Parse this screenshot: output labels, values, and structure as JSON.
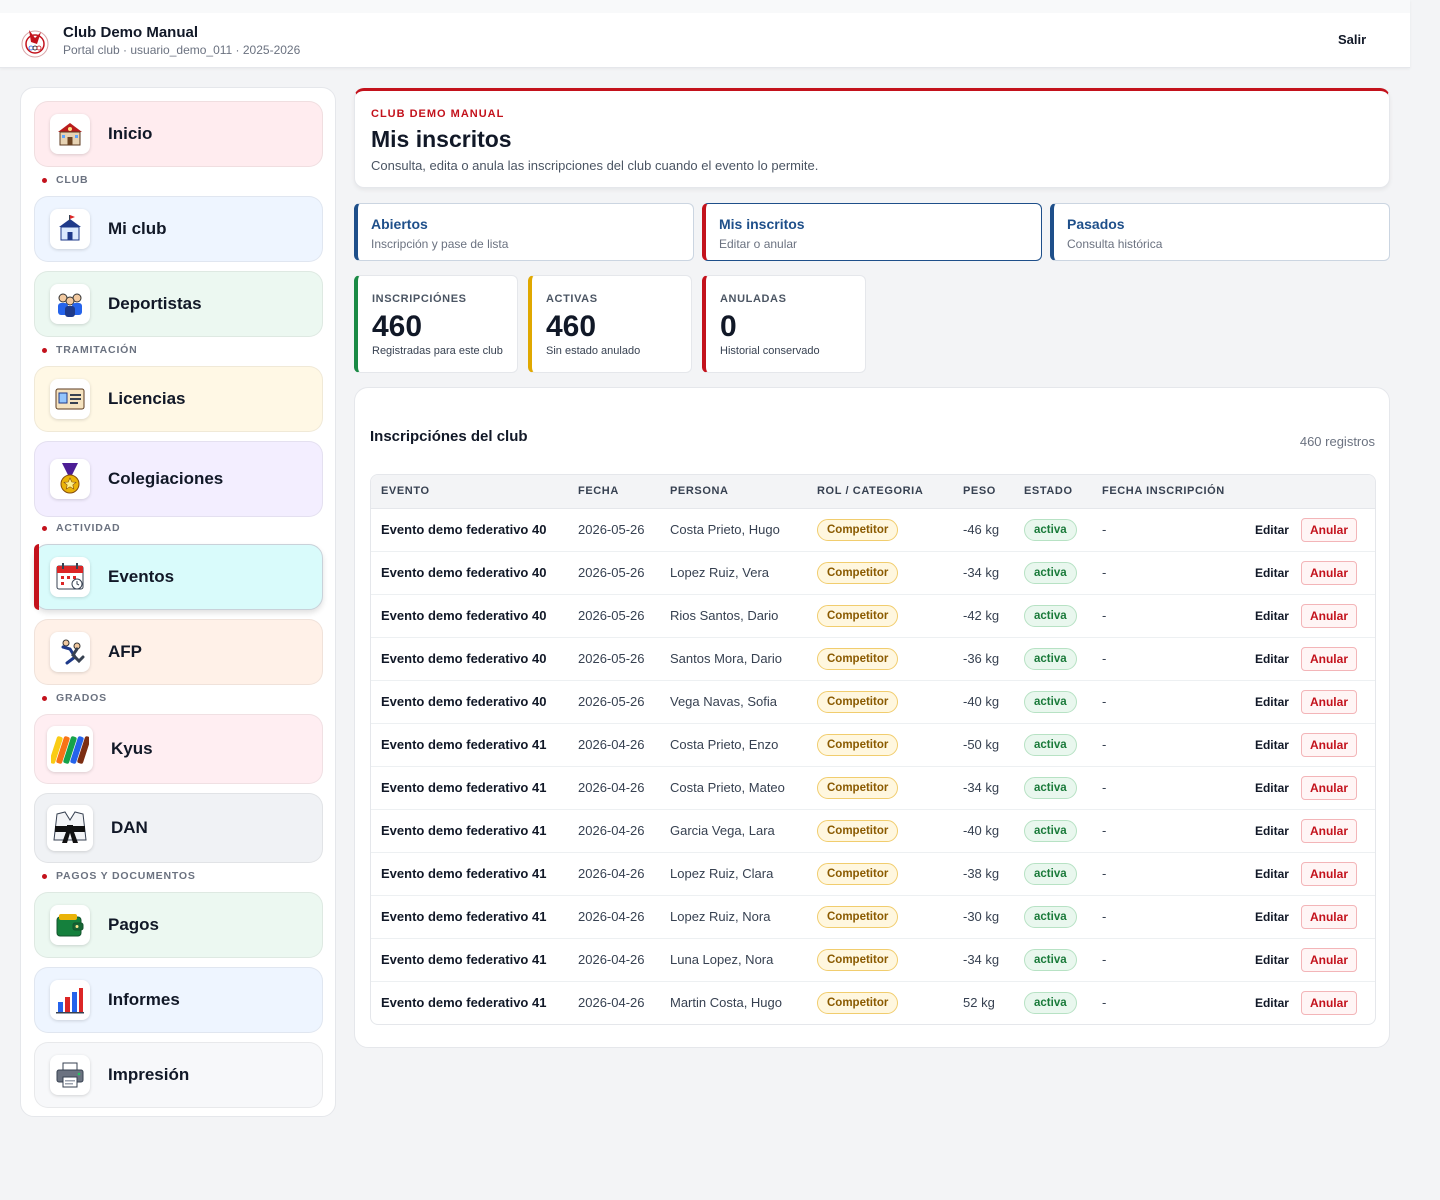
{
  "header": {
    "title": "Club Demo Manual",
    "subtitle": "Portal club · usuario_demo_011 · 2025-2026",
    "logout": "Salir"
  },
  "sidebar": {
    "items": [
      {
        "label": "Inicio",
        "icon": "school-building-icon",
        "color": "#ffecef"
      },
      {
        "label": "Mi club",
        "icon": "club-building-icon",
        "color": "#eef5ff"
      },
      {
        "label": "Deportistas",
        "icon": "athletes-group-icon",
        "color": "#ecf8f1"
      },
      {
        "label": "Licencias",
        "icon": "id-card-icon",
        "color": "#fff8e5"
      },
      {
        "label": "Colegiaciones",
        "icon": "medal-icon",
        "color": "#f3eeff"
      },
      {
        "label": "Eventos",
        "icon": "calendar-icon",
        "color": "#d9fbfb"
      },
      {
        "label": "AFP",
        "icon": "judo-throw-icon",
        "color": "#fff1e8"
      },
      {
        "label": "Kyus",
        "icon": "colored-belts-icon",
        "color": "#ffeef2"
      },
      {
        "label": "DAN",
        "icon": "black-belt-icon",
        "color": "#f0f2f5"
      },
      {
        "label": "Pagos",
        "icon": "wallet-icon",
        "color": "#ecf8f1"
      },
      {
        "label": "Informes",
        "icon": "bar-chart-icon",
        "color": "#eef5ff"
      },
      {
        "label": "Impresión",
        "icon": "printer-icon",
        "color": "#f7f8fa"
      }
    ],
    "sections": [
      "CLUB",
      "TRAMITACIÓN",
      "ACTIVIDAD",
      "GRADOS",
      "PAGOS Y DOCUMENTOS"
    ]
  },
  "hero": {
    "kicker": "CLUB DEMO MANUAL",
    "title": "Mis inscritos",
    "description": "Consulta, edita o anula las inscripciones del club cuando el evento lo permite."
  },
  "tabs": [
    {
      "title": "Abiertos",
      "subtitle": "Inscripción y pase de lista"
    },
    {
      "title": "Mis inscritos",
      "subtitle": "Editar o anular"
    },
    {
      "title": "Pasados",
      "subtitle": "Consulta histórica"
    }
  ],
  "stats": [
    {
      "label": "INSCRIPCIÓNES",
      "value": "460",
      "desc": "Registradas para este club",
      "color": "#1a8a45"
    },
    {
      "label": "ACTIVAS",
      "value": "460",
      "desc": "Sin estado anulado",
      "color": "#e0a800"
    },
    {
      "label": "ANULADAS",
      "value": "0",
      "desc": "Historial conservado",
      "color": "#c3121c"
    }
  ],
  "table": {
    "title": "Inscripciónes del club",
    "count": "460 registros",
    "columns": [
      "EVENTO",
      "FECHA",
      "PERSONA",
      "ROL / CATEGORIA",
      "PESO",
      "ESTADO",
      "FECHA INSCRIPCIÓN"
    ],
    "edit_label": "Editar",
    "cancel_label": "Anular",
    "rows": [
      {
        "evento": "Evento demo federativo 40",
        "fecha": "2026-05-26",
        "persona": "Costa Prieto, Hugo",
        "rol": "Competitor",
        "peso": "-46 kg",
        "estado": "activa",
        "fecha_insc": "-"
      },
      {
        "evento": "Evento demo federativo 40",
        "fecha": "2026-05-26",
        "persona": "Lopez Ruiz, Vera",
        "rol": "Competitor",
        "peso": "-34 kg",
        "estado": "activa",
        "fecha_insc": "-"
      },
      {
        "evento": "Evento demo federativo 40",
        "fecha": "2026-05-26",
        "persona": "Rios Santos, Dario",
        "rol": "Competitor",
        "peso": "-42 kg",
        "estado": "activa",
        "fecha_insc": "-"
      },
      {
        "evento": "Evento demo federativo 40",
        "fecha": "2026-05-26",
        "persona": "Santos Mora, Dario",
        "rol": "Competitor",
        "peso": "-36 kg",
        "estado": "activa",
        "fecha_insc": "-"
      },
      {
        "evento": "Evento demo federativo 40",
        "fecha": "2026-05-26",
        "persona": "Vega Navas, Sofia",
        "rol": "Competitor",
        "peso": "-40 kg",
        "estado": "activa",
        "fecha_insc": "-"
      },
      {
        "evento": "Evento demo federativo 41",
        "fecha": "2026-04-26",
        "persona": "Costa Prieto, Enzo",
        "rol": "Competitor",
        "peso": "-50 kg",
        "estado": "activa",
        "fecha_insc": "-"
      },
      {
        "evento": "Evento demo federativo 41",
        "fecha": "2026-04-26",
        "persona": "Costa Prieto, Mateo",
        "rol": "Competitor",
        "peso": "-34 kg",
        "estado": "activa",
        "fecha_insc": "-"
      },
      {
        "evento": "Evento demo federativo 41",
        "fecha": "2026-04-26",
        "persona": "Garcia Vega, Lara",
        "rol": "Competitor",
        "peso": "-40 kg",
        "estado": "activa",
        "fecha_insc": "-"
      },
      {
        "evento": "Evento demo federativo 41",
        "fecha": "2026-04-26",
        "persona": "Lopez Ruiz, Clara",
        "rol": "Competitor",
        "peso": "-38 kg",
        "estado": "activa",
        "fecha_insc": "-"
      },
      {
        "evento": "Evento demo federativo 41",
        "fecha": "2026-04-26",
        "persona": "Lopez Ruiz, Nora",
        "rol": "Competitor",
        "peso": "-30 kg",
        "estado": "activa",
        "fecha_insc": "-"
      },
      {
        "evento": "Evento demo federativo 41",
        "fecha": "2026-04-26",
        "persona": "Luna Lopez, Nora",
        "rol": "Competitor",
        "peso": "-34 kg",
        "estado": "activa",
        "fecha_insc": "-"
      },
      {
        "evento": "Evento demo federativo 41",
        "fecha": "2026-04-26",
        "persona": "Martin Costa, Hugo",
        "rol": "Competitor",
        "peso": "52 kg",
        "estado": "activa",
        "fecha_insc": "-"
      }
    ]
  },
  "colors": {
    "accent": "#c3121c",
    "primary": "#1e4f8a"
  }
}
